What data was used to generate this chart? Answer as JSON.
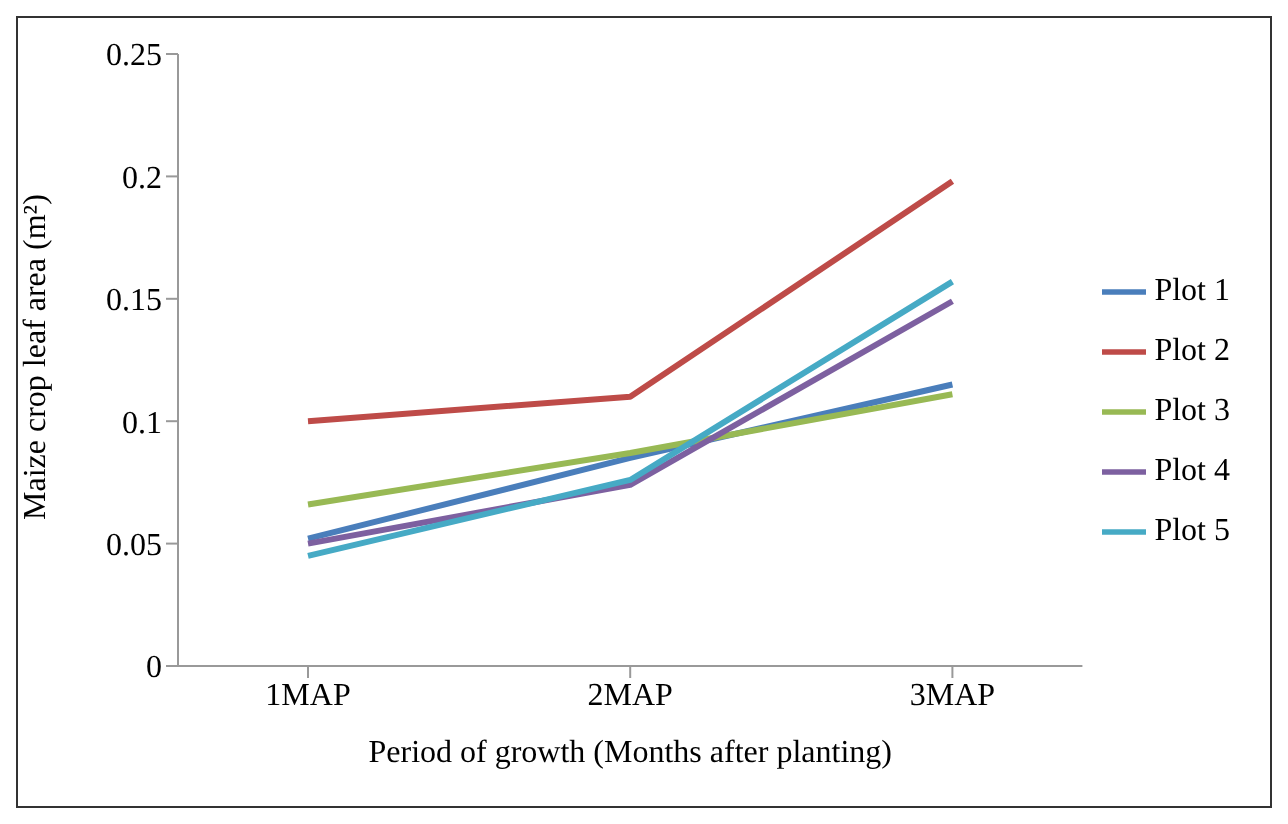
{
  "chart_data": {
    "type": "line",
    "xlabel": "Period of growth (Months after planting)",
    "ylabel": "Maize crop leaf area (m²)",
    "categories": [
      "1MAP",
      "2MAP",
      "3MAP"
    ],
    "series": [
      {
        "name": "Plot 1",
        "color": "#4a7ebb",
        "values": [
          0.052,
          0.085,
          0.115
        ]
      },
      {
        "name": "Plot 2",
        "color": "#be4b48",
        "values": [
          0.1,
          0.11,
          0.198
        ]
      },
      {
        "name": "Plot 3",
        "color": "#98b954",
        "values": [
          0.066,
          0.087,
          0.111
        ]
      },
      {
        "name": "Plot 4",
        "color": "#7d60a0",
        "values": [
          0.05,
          0.074,
          0.149
        ]
      },
      {
        "name": "Plot 5",
        "color": "#46aac5",
        "values": [
          0.045,
          0.076,
          0.157
        ]
      }
    ],
    "ylim": [
      0,
      0.25
    ],
    "yticks": [
      0,
      0.05,
      0.1,
      0.15,
      0.2,
      0.25
    ],
    "grid": false,
    "legend": "right",
    "marker": "none",
    "line_style": "solid"
  }
}
